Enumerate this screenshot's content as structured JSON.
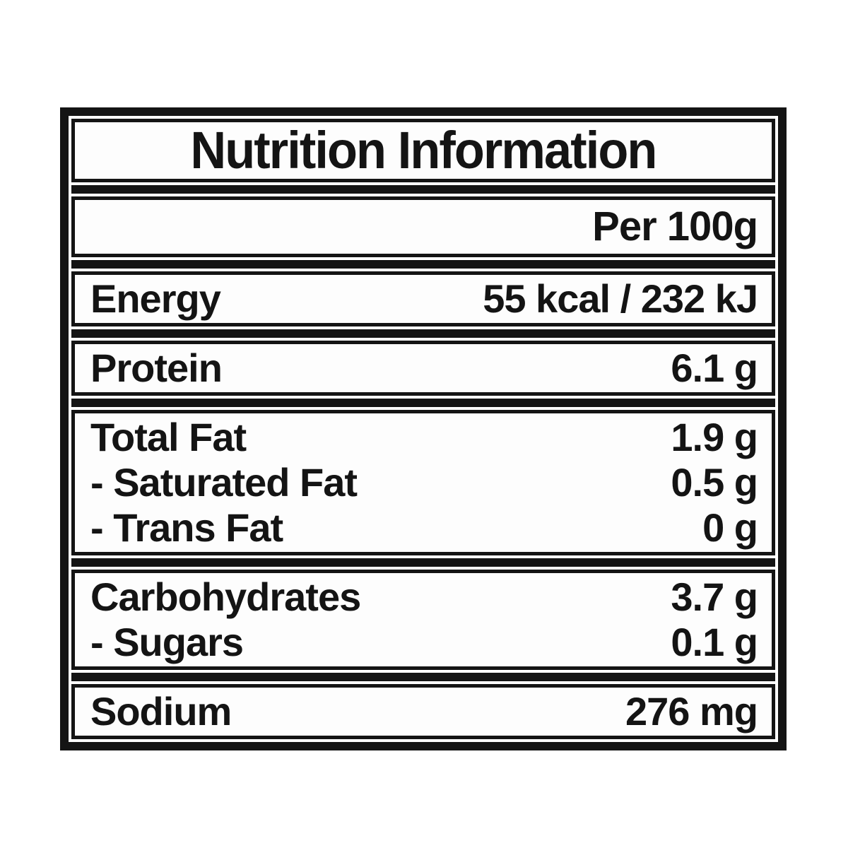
{
  "title": "Nutrition Information",
  "table": {
    "column_header": "Per 100g",
    "rows": {
      "energy": {
        "label": "Energy",
        "value": "55 kcal / 232 kJ"
      },
      "protein": {
        "label": "Protein",
        "value": "6.1 g"
      },
      "total_fat": {
        "label": "Total Fat",
        "value": "1.9 g"
      },
      "saturated_fat": {
        "label": "- Saturated Fat",
        "value": "0.5 g"
      },
      "trans_fat": {
        "label": "- Trans Fat",
        "value": "0 g"
      },
      "carbohydrates": {
        "label": "Carbohydrates",
        "value": "3.7 g"
      },
      "sugars": {
        "label": "- Sugars",
        "value": "0.1 g"
      },
      "sodium": {
        "label": "Sodium",
        "value": "276 mg"
      }
    }
  },
  "colors": {
    "ink": "#141414",
    "page_background": "#ffffff",
    "section_background": "#fdfdfd"
  }
}
